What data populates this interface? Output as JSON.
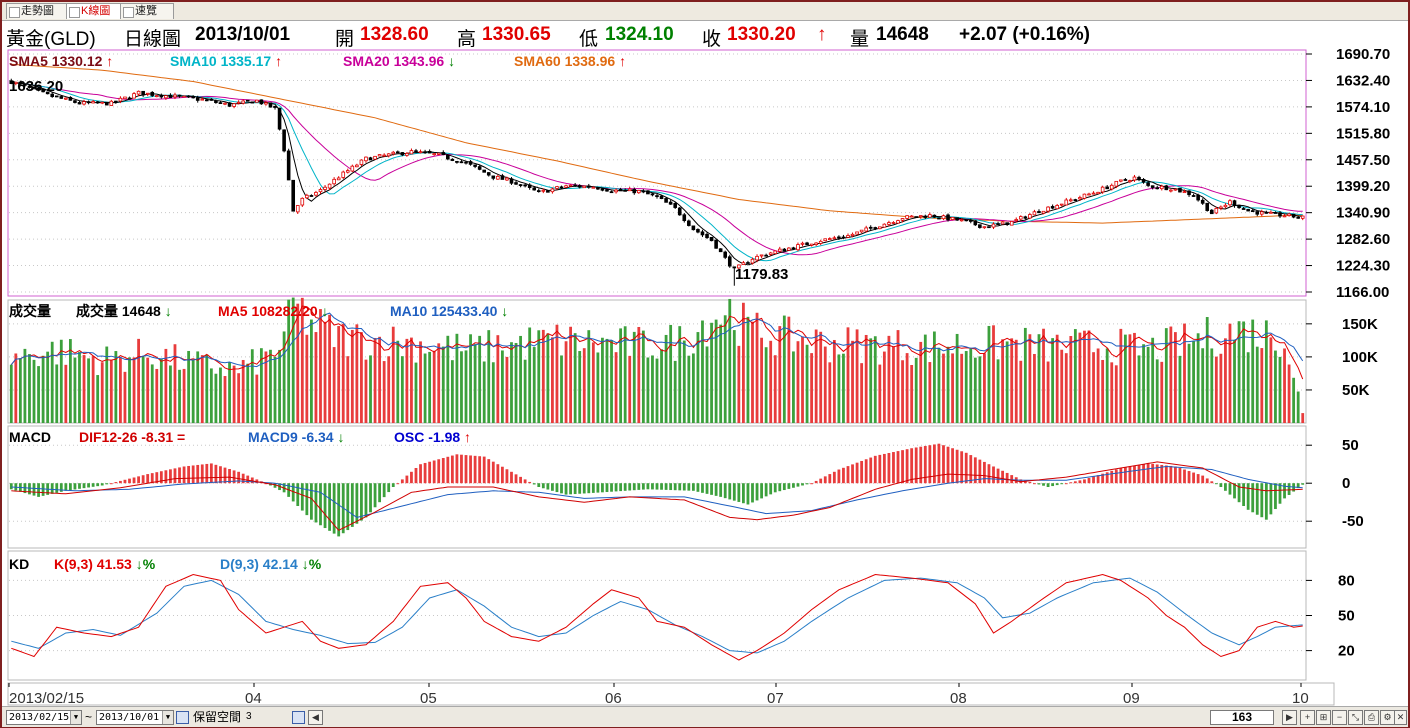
{
  "tabs": [
    {
      "label": "走勢圖",
      "active": false
    },
    {
      "label": "K線圖",
      "active": true
    },
    {
      "label": "速覽",
      "active": false
    }
  ],
  "header": {
    "symbol": "黃金(GLD)",
    "period": "日線圖",
    "date": "2013/10/01",
    "open_label": "開",
    "open": "1328.60",
    "high_label": "高",
    "high": "1330.65",
    "low_label": "低",
    "low": "1324.10",
    "close_label": "收",
    "close": "1330.20",
    "close_arrow": "↑",
    "volume_label": "量",
    "volume": "14648",
    "change": "+2.07 (+0.16%)"
  },
  "colors": {
    "up": "#e00000",
    "down": "#000000",
    "vol_up": "#e83c3c",
    "vol_down": "#3ca03c",
    "sma5": "#000000",
    "sma10": "#00b4c8",
    "sma20": "#c8009a",
    "sma60": "#e06a10",
    "dif": "#d00000",
    "macd": "#1f5fc0",
    "k": "#e00000",
    "d": "#2a7fc8",
    "grid": "#c8c8c8",
    "panel_border": "#d060d0"
  },
  "legends": {
    "price": [
      {
        "text": "SMA5 1330.12",
        "arrow": "↑",
        "color": "#7a0a14"
      },
      {
        "text": "SMA10 1335.17",
        "arrow": "↑",
        "color": "#00b4c8"
      },
      {
        "text": "SMA20 1343.96",
        "arrow": "↓",
        "color": "#c8009a"
      },
      {
        "text": "SMA60 1338.96",
        "arrow": "↑",
        "color": "#e06a10"
      }
    ],
    "volume": [
      {
        "text": "成交量",
        "arrow": "",
        "color": "#000000"
      },
      {
        "text": "成交量 14648",
        "arrow": "↓",
        "color": "#000000"
      },
      {
        "text": "MA5 108282.20",
        "arrow": "↓",
        "color": "#e00000"
      },
      {
        "text": "MA10 125433.40",
        "arrow": "↓",
        "color": "#1f5fc0"
      }
    ],
    "macd": [
      {
        "text": "MACD",
        "arrow": "",
        "color": "#000000"
      },
      {
        "text": "DIF12-26 -8.31 =",
        "arrow": "",
        "color": "#d00000"
      },
      {
        "text": "MACD9 -6.34",
        "arrow": "↓",
        "color": "#1f5fc0"
      },
      {
        "text": "OSC -1.98",
        "arrow": "↑",
        "color": "#0000d0"
      }
    ],
    "kd": [
      {
        "text": "KD",
        "arrow": "",
        "color": "#000000"
      },
      {
        "text": "K(9,3) 41.53",
        "arrow": "↓%",
        "color": "#e00000"
      },
      {
        "text": "D(9,3) 42.14",
        "arrow": "↓%",
        "color": "#2a7fc8"
      }
    ]
  },
  "annotations": {
    "max_label": "1636.20",
    "min_label": "1179.83"
  },
  "axes": {
    "price_ticks": [
      "1690.70",
      "1632.40",
      "1574.10",
      "1515.80",
      "1457.50",
      "1399.20",
      "1340.90",
      "1282.60",
      "1224.30",
      "1166.00"
    ],
    "volume_ticks": [
      "150K",
      "100K",
      "50K"
    ],
    "macd_ticks": [
      "50",
      "0",
      "-50"
    ],
    "kd_ticks": [
      "80",
      "50",
      "20"
    ],
    "date_labels": [
      "2013/02/15",
      "04",
      "05",
      "06",
      "07",
      "08",
      "09",
      "10"
    ]
  },
  "bottom_bar": {
    "from_date": "2013/02/15",
    "tilde": "~",
    "to_date": "2013/10/01",
    "reserve_label": "保留空間",
    "reserve_value": "3",
    "count": "163"
  },
  "chart_data": {
    "type": "candlestick",
    "x_start": "2013/02/15",
    "x_end": "2013/10/01",
    "bars": 163,
    "price_range": [
      1166.0,
      1690.7
    ],
    "price_anchors": [
      [
        0,
        1630
      ],
      [
        8,
        1600
      ],
      [
        15,
        1582
      ],
      [
        22,
        1582
      ],
      [
        28,
        1605
      ],
      [
        35,
        1598
      ],
      [
        42,
        1590
      ],
      [
        48,
        1578
      ],
      [
        54,
        1588
      ],
      [
        58,
        1570
      ],
      [
        60,
        1480
      ],
      [
        62,
        1345
      ],
      [
        64,
        1370
      ],
      [
        68,
        1390
      ],
      [
        72,
        1420
      ],
      [
        78,
        1460
      ],
      [
        84,
        1470
      ],
      [
        88,
        1475
      ],
      [
        94,
        1468
      ],
      [
        100,
        1450
      ],
      [
        106,
        1420
      ],
      [
        110,
        1410
      ],
      [
        116,
        1385
      ],
      [
        122,
        1400
      ],
      [
        128,
        1398
      ],
      [
        132,
        1390
      ],
      [
        138,
        1388
      ],
      [
        142,
        1375
      ],
      [
        146,
        1350
      ],
      [
        150,
        1305
      ],
      [
        154,
        1280
      ],
      [
        157,
        1240
      ],
      [
        159,
        1215
      ],
      [
        163,
        1240
      ],
      [
        166,
        1250
      ],
      [
        172,
        1265
      ],
      [
        178,
        1280
      ],
      [
        184,
        1290
      ],
      [
        190,
        1310
      ],
      [
        196,
        1330
      ],
      [
        202,
        1335
      ],
      [
        208,
        1325
      ],
      [
        214,
        1310
      ],
      [
        220,
        1320
      ],
      [
        226,
        1345
      ],
      [
        232,
        1365
      ],
      [
        238,
        1385
      ],
      [
        244,
        1410
      ],
      [
        247,
        1418
      ],
      [
        250,
        1400
      ],
      [
        255,
        1395
      ],
      [
        260,
        1380
      ],
      [
        264,
        1340
      ],
      [
        268,
        1365
      ],
      [
        272,
        1345
      ],
      [
        276,
        1338
      ],
      [
        280,
        1335
      ],
      [
        284,
        1330
      ]
    ],
    "sma60_anchors": [
      [
        0,
        1668
      ],
      [
        20,
        1655
      ],
      [
        40,
        1630
      ],
      [
        60,
        1590
      ],
      [
        80,
        1550
      ],
      [
        100,
        1495
      ],
      [
        120,
        1455
      ],
      [
        140,
        1410
      ],
      [
        160,
        1370
      ],
      [
        180,
        1345
      ],
      [
        200,
        1330
      ],
      [
        220,
        1322
      ],
      [
        240,
        1318
      ],
      [
        260,
        1326
      ],
      [
        284,
        1336
      ]
    ],
    "volume_range": [
      0,
      180000
    ],
    "volume_anchors": [
      [
        0,
        100000
      ],
      [
        10,
        110000
      ],
      [
        20,
        95000
      ],
      [
        30,
        105000
      ],
      [
        40,
        90000
      ],
      [
        50,
        80000
      ],
      [
        56,
        100000
      ],
      [
        60,
        120000
      ],
      [
        62,
        180000
      ],
      [
        66,
        150000
      ],
      [
        72,
        130000
      ],
      [
        80,
        125000
      ],
      [
        90,
        120000
      ],
      [
        100,
        110000
      ],
      [
        110,
        118000
      ],
      [
        120,
        125000
      ],
      [
        130,
        120000
      ],
      [
        140,
        118000
      ],
      [
        148,
        125000
      ],
      [
        154,
        160000
      ],
      [
        158,
        170000
      ],
      [
        162,
        140000
      ],
      [
        170,
        130000
      ],
      [
        180,
        120000
      ],
      [
        190,
        118000
      ],
      [
        200,
        115000
      ],
      [
        210,
        118000
      ],
      [
        220,
        120000
      ],
      [
        230,
        115000
      ],
      [
        240,
        118000
      ],
      [
        250,
        110000
      ],
      [
        260,
        125000
      ],
      [
        270,
        140000
      ],
      [
        280,
        130000
      ],
      [
        284,
        15000
      ]
    ],
    "macd_range": [
      -80,
      70
    ],
    "osc_anchors": [
      [
        0,
        -8
      ],
      [
        6,
        -18
      ],
      [
        12,
        -10
      ],
      [
        20,
        -3
      ],
      [
        30,
        12
      ],
      [
        38,
        22
      ],
      [
        44,
        26
      ],
      [
        50,
        15
      ],
      [
        56,
        0
      ],
      [
        60,
        -12
      ],
      [
        66,
        -48
      ],
      [
        72,
        -70
      ],
      [
        78,
        -45
      ],
      [
        84,
        -5
      ],
      [
        90,
        25
      ],
      [
        98,
        38
      ],
      [
        104,
        35
      ],
      [
        110,
        15
      ],
      [
        116,
        -5
      ],
      [
        122,
        -15
      ],
      [
        130,
        -12
      ],
      [
        140,
        -8
      ],
      [
        150,
        -10
      ],
      [
        156,
        -18
      ],
      [
        162,
        -28
      ],
      [
        168,
        -12
      ],
      [
        176,
        0
      ],
      [
        182,
        18
      ],
      [
        190,
        36
      ],
      [
        198,
        46
      ],
      [
        204,
        52
      ],
      [
        210,
        40
      ],
      [
        216,
        22
      ],
      [
        222,
        5
      ],
      [
        228,
        -5
      ],
      [
        236,
        5
      ],
      [
        244,
        20
      ],
      [
        250,
        26
      ],
      [
        256,
        22
      ],
      [
        262,
        10
      ],
      [
        266,
        -5
      ],
      [
        272,
        -35
      ],
      [
        276,
        -48
      ],
      [
        280,
        -20
      ],
      [
        284,
        -2
      ]
    ],
    "dif_anchors": [
      [
        0,
        -10
      ],
      [
        12,
        -14
      ],
      [
        24,
        -6
      ],
      [
        36,
        6
      ],
      [
        48,
        8
      ],
      [
        58,
        -2
      ],
      [
        66,
        -20
      ],
      [
        72,
        -62
      ],
      [
        80,
        -38
      ],
      [
        88,
        -12
      ],
      [
        96,
        -5
      ],
      [
        106,
        -5
      ],
      [
        116,
        -18
      ],
      [
        126,
        -25
      ],
      [
        136,
        -18
      ],
      [
        148,
        -22
      ],
      [
        158,
        -45
      ],
      [
        164,
        -48
      ],
      [
        172,
        -42
      ],
      [
        180,
        -32
      ],
      [
        190,
        -8
      ],
      [
        198,
        5
      ],
      [
        206,
        12
      ],
      [
        214,
        10
      ],
      [
        222,
        2
      ],
      [
        232,
        8
      ],
      [
        244,
        20
      ],
      [
        252,
        28
      ],
      [
        262,
        20
      ],
      [
        270,
        -5
      ],
      [
        276,
        -10
      ],
      [
        284,
        -8
      ]
    ],
    "dea_anchors": [
      [
        0,
        -5
      ],
      [
        14,
        -10
      ],
      [
        26,
        -8
      ],
      [
        38,
        -1
      ],
      [
        50,
        3
      ],
      [
        58,
        0
      ],
      [
        68,
        -12
      ],
      [
        76,
        -45
      ],
      [
        86,
        -30
      ],
      [
        96,
        -15
      ],
      [
        106,
        -10
      ],
      [
        116,
        -12
      ],
      [
        126,
        -20
      ],
      [
        136,
        -18
      ],
      [
        148,
        -18
      ],
      [
        158,
        -30
      ],
      [
        166,
        -40
      ],
      [
        176,
        -36
      ],
      [
        186,
        -22
      ],
      [
        196,
        -10
      ],
      [
        206,
        0
      ],
      [
        214,
        6
      ],
      [
        222,
        4
      ],
      [
        232,
        4
      ],
      [
        244,
        14
      ],
      [
        254,
        22
      ],
      [
        264,
        18
      ],
      [
        272,
        5
      ],
      [
        280,
        -4
      ],
      [
        284,
        -6
      ]
    ],
    "kd_range": [
      0,
      100
    ],
    "k_anchors": [
      [
        0,
        22
      ],
      [
        5,
        15
      ],
      [
        10,
        40
      ],
      [
        16,
        35
      ],
      [
        22,
        32
      ],
      [
        28,
        40
      ],
      [
        34,
        75
      ],
      [
        40,
        85
      ],
      [
        46,
        80
      ],
      [
        50,
        55
      ],
      [
        56,
        35
      ],
      [
        60,
        40
      ],
      [
        64,
        45
      ],
      [
        68,
        28
      ],
      [
        72,
        22
      ],
      [
        78,
        25
      ],
      [
        84,
        45
      ],
      [
        90,
        75
      ],
      [
        96,
        78
      ],
      [
        100,
        65
      ],
      [
        104,
        45
      ],
      [
        110,
        32
      ],
      [
        116,
        28
      ],
      [
        122,
        40
      ],
      [
        128,
        60
      ],
      [
        132,
        72
      ],
      [
        138,
        65
      ],
      [
        142,
        45
      ],
      [
        148,
        40
      ],
      [
        154,
        25
      ],
      [
        160,
        12
      ],
      [
        164,
        20
      ],
      [
        170,
        35
      ],
      [
        176,
        55
      ],
      [
        182,
        72
      ],
      [
        190,
        85
      ],
      [
        198,
        82
      ],
      [
        206,
        78
      ],
      [
        212,
        60
      ],
      [
        216,
        35
      ],
      [
        220,
        45
      ],
      [
        226,
        62
      ],
      [
        232,
        78
      ],
      [
        240,
        85
      ],
      [
        244,
        80
      ],
      [
        250,
        65
      ],
      [
        254,
        50
      ],
      [
        258,
        40
      ],
      [
        262,
        25
      ],
      [
        266,
        15
      ],
      [
        270,
        20
      ],
      [
        274,
        40
      ],
      [
        278,
        45
      ],
      [
        282,
        40
      ],
      [
        284,
        41
      ]
    ],
    "d_anchors": [
      [
        0,
        28
      ],
      [
        6,
        22
      ],
      [
        12,
        35
      ],
      [
        18,
        38
      ],
      [
        24,
        33
      ],
      [
        32,
        52
      ],
      [
        38,
        75
      ],
      [
        44,
        80
      ],
      [
        50,
        68
      ],
      [
        56,
        45
      ],
      [
        62,
        38
      ],
      [
        68,
        33
      ],
      [
        74,
        26
      ],
      [
        80,
        27
      ],
      [
        86,
        40
      ],
      [
        92,
        65
      ],
      [
        98,
        72
      ],
      [
        104,
        58
      ],
      [
        110,
        40
      ],
      [
        116,
        32
      ],
      [
        122,
        35
      ],
      [
        128,
        50
      ],
      [
        134,
        62
      ],
      [
        140,
        55
      ],
      [
        146,
        42
      ],
      [
        152,
        32
      ],
      [
        158,
        20
      ],
      [
        164,
        18
      ],
      [
        170,
        28
      ],
      [
        176,
        45
      ],
      [
        184,
        65
      ],
      [
        192,
        80
      ],
      [
        200,
        82
      ],
      [
        208,
        78
      ],
      [
        214,
        65
      ],
      [
        218,
        48
      ],
      [
        224,
        52
      ],
      [
        230,
        65
      ],
      [
        238,
        78
      ],
      [
        246,
        82
      ],
      [
        252,
        70
      ],
      [
        258,
        52
      ],
      [
        264,
        35
      ],
      [
        270,
        25
      ],
      [
        274,
        32
      ],
      [
        278,
        40
      ],
      [
        284,
        42
      ]
    ]
  }
}
